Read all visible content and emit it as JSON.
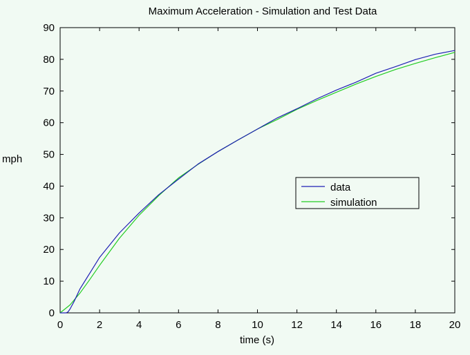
{
  "chart_data": {
    "type": "line",
    "title": "Maximum Acceleration - Simulation and Test Data",
    "xlabel": "time (s)",
    "ylabel": "mph",
    "xlim": [
      0,
      20
    ],
    "ylim": [
      0,
      90
    ],
    "xticks": [
      0,
      2,
      4,
      6,
      8,
      10,
      12,
      14,
      16,
      18,
      20
    ],
    "yticks": [
      0,
      10,
      20,
      30,
      40,
      50,
      60,
      70,
      80,
      90
    ],
    "grid": false,
    "legend_position": "center-right",
    "series": [
      {
        "name": "data",
        "color": "#1f1fb4",
        "x": [
          0,
          0.3,
          0.4,
          0.5,
          0.7,
          1,
          1.5,
          2,
          3,
          4,
          5,
          6,
          7,
          8,
          9,
          10,
          11,
          12,
          13,
          14,
          15,
          16,
          17,
          18,
          19,
          20
        ],
        "y": [
          0,
          0,
          0.3,
          1.2,
          3.5,
          7.5,
          12.5,
          17.5,
          25.2,
          31.5,
          37.3,
          42.2,
          47,
          50.9,
          54.5,
          58,
          61.5,
          64.4,
          67.5,
          70.3,
          72.8,
          75.6,
          77.7,
          79.9,
          81.6,
          82.8
        ]
      },
      {
        "name": "simulation",
        "color": "#22cc22",
        "x": [
          0,
          0.5,
          1,
          1.5,
          2,
          3,
          4,
          5,
          6,
          7,
          8,
          9,
          10,
          11,
          12,
          13,
          14,
          15,
          16,
          17,
          18,
          19,
          20
        ],
        "y": [
          0,
          2.5,
          6.2,
          10.5,
          15,
          23.5,
          30.8,
          37,
          42.6,
          46.9,
          50.9,
          54.5,
          58,
          61,
          64.2,
          67,
          69.6,
          72.2,
          74.6,
          76.8,
          78.7,
          80.5,
          82.2
        ]
      }
    ]
  }
}
